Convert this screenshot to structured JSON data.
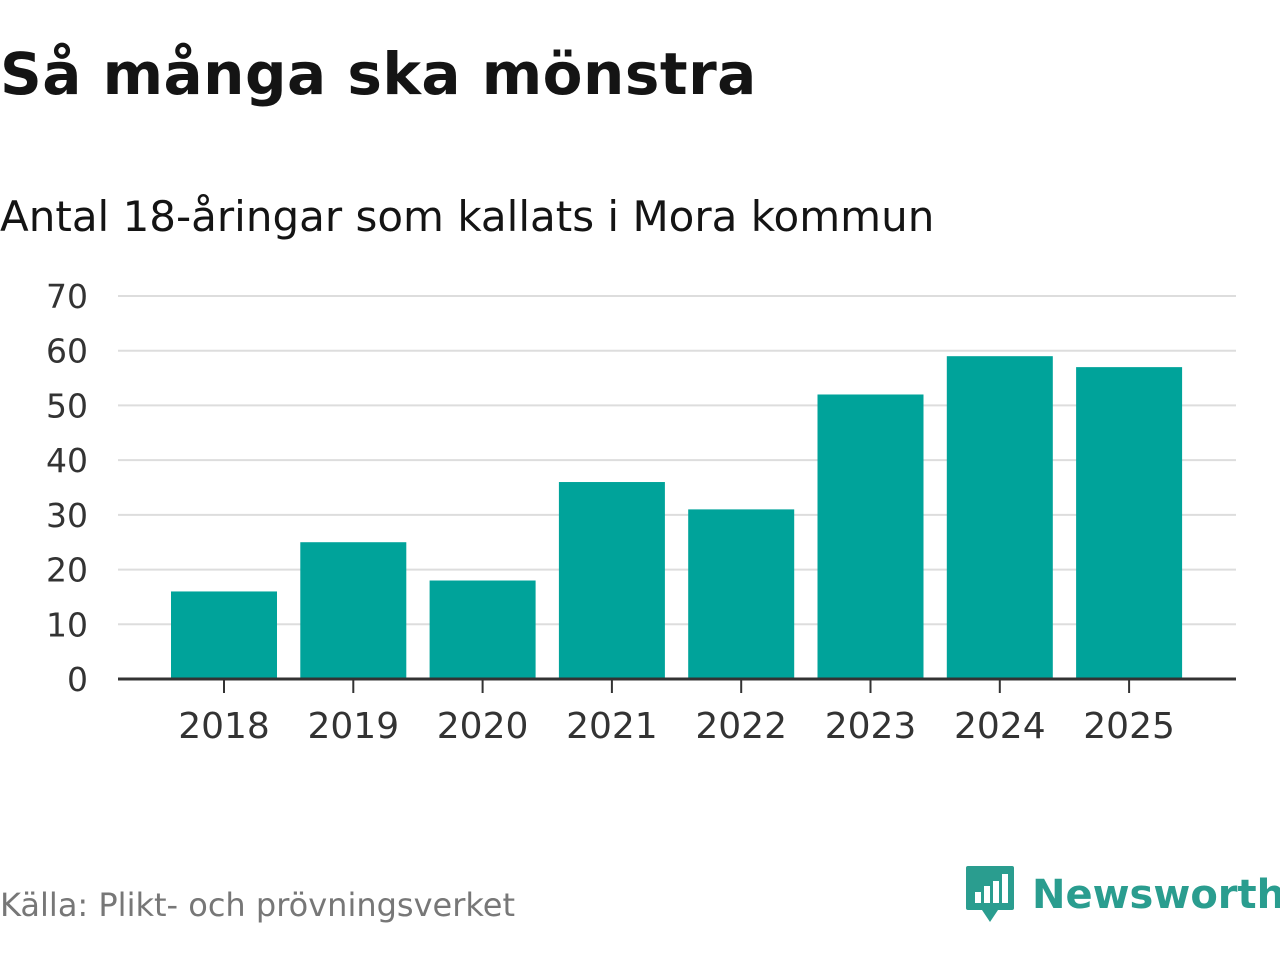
{
  "title": "Så många ska mönstra",
  "subtitle": "Antal 18-åringar som kallats i Mora kommun",
  "source": "Källa: Plikt- och prövningsverket",
  "brand": {
    "name": "Newsworthy",
    "icon": "newsworthy-logo-icon",
    "color": "#2a9d8f"
  },
  "colors": {
    "bar": "#00a39a",
    "grid": "#dddddd",
    "axis": "#333333"
  },
  "chart_data": {
    "type": "bar",
    "title": "Så många ska mönstra",
    "subtitle": "Antal 18-åringar som kallats i Mora kommun",
    "categories": [
      "2018",
      "2019",
      "2020",
      "2021",
      "2022",
      "2023",
      "2024",
      "2025"
    ],
    "values": [
      16,
      25,
      18,
      36,
      31,
      52,
      59,
      57
    ],
    "xlabel": "",
    "ylabel": "",
    "ylim": [
      0,
      70
    ],
    "yticks": [
      0,
      10,
      20,
      30,
      40,
      50,
      60,
      70
    ],
    "grid": true,
    "legend": "none"
  }
}
